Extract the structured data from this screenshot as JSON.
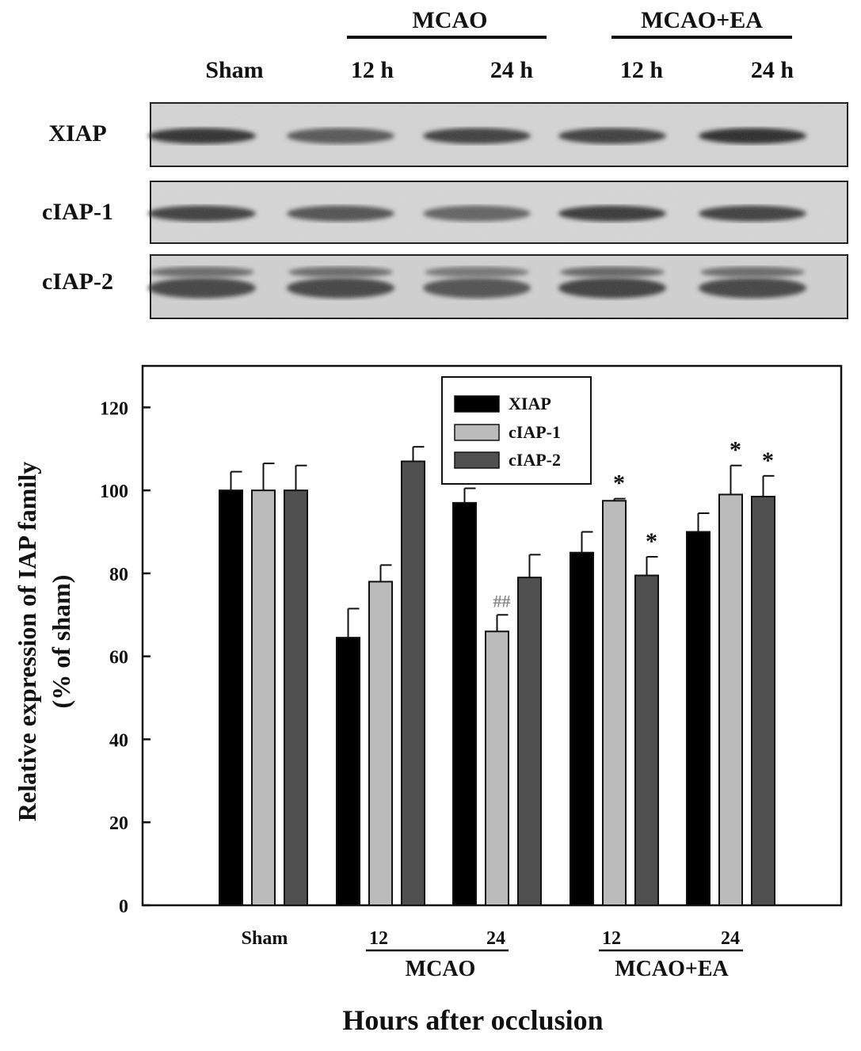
{
  "blot": {
    "lanes": [
      "Sham",
      "12 h",
      "24 h",
      "12 h",
      "24 h"
    ],
    "groups": [
      {
        "label": "MCAO"
      },
      {
        "label": "MCAO+EA"
      }
    ],
    "rows": [
      {
        "label": "XIAP",
        "intensity": [
          0.85,
          0.55,
          0.75,
          0.75,
          0.9
        ]
      },
      {
        "label": "cIAP-1",
        "intensity": [
          0.75,
          0.6,
          0.45,
          0.8,
          0.75
        ]
      },
      {
        "label": "cIAP-2",
        "intensity": [
          0.7,
          0.7,
          0.6,
          0.75,
          0.7
        ]
      }
    ]
  },
  "chart_data": {
    "type": "bar",
    "categories": [
      "Sham",
      "12",
      "24",
      "12",
      "24"
    ],
    "groups": [
      {
        "label": "MCAO"
      },
      {
        "label": "MCAO+EA"
      }
    ],
    "xlabel": "Hours after occlusion",
    "ylabel_line1": "Relative expression of IAP family",
    "ylabel_line2": "(% of sham)",
    "ylim": [
      0,
      130
    ],
    "yticks": [
      0,
      20,
      40,
      60,
      80,
      100,
      120
    ],
    "legend_position": "top-center",
    "series": [
      {
        "name": "XIAP",
        "color": "#000000",
        "values": [
          100,
          64.5,
          97,
          85,
          90
        ],
        "errors": [
          4.5,
          7,
          3.5,
          5,
          4.5
        ],
        "annotations": [
          "",
          "",
          "",
          "",
          ""
        ]
      },
      {
        "name": "cIAP-1",
        "color": "#bbbbbb",
        "values": [
          100,
          78,
          66,
          97.5,
          99
        ],
        "errors": [
          6.5,
          4,
          4,
          0.5,
          7
        ],
        "annotations": [
          "",
          "",
          "##",
          "*",
          "*"
        ]
      },
      {
        "name": "cIAP-2",
        "color": "#505050",
        "values": [
          100,
          107,
          79,
          79.5,
          98.5
        ],
        "errors": [
          6,
          3.5,
          5.5,
          4.5,
          5
        ],
        "annotations": [
          "",
          "",
          "",
          "*",
          "*"
        ]
      }
    ]
  }
}
